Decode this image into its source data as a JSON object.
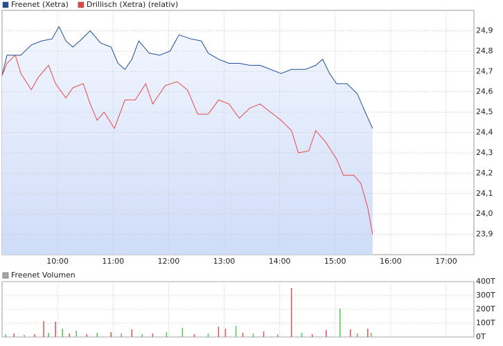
{
  "chart_data": [
    {
      "type": "line",
      "xlim": [
        9,
        17.5
      ],
      "ylim": [
        23.8,
        25.0
      ],
      "grid": true,
      "xticks": [
        {
          "value": 10,
          "label": "10:00"
        },
        {
          "value": 11,
          "label": "11:00"
        },
        {
          "value": 12,
          "label": "12:00"
        },
        {
          "value": 13,
          "label": "13:00"
        },
        {
          "value": 14,
          "label": "14:00"
        },
        {
          "value": 15,
          "label": "15:00"
        },
        {
          "value": 16,
          "label": "16:00"
        },
        {
          "value": 17,
          "label": "17:00"
        }
      ],
      "yticks": [
        {
          "value": 23.9,
          "label": "23,9"
        },
        {
          "value": 24.0,
          "label": "24,0"
        },
        {
          "value": 24.1,
          "label": "24,1"
        },
        {
          "value": 24.2,
          "label": "24,2"
        },
        {
          "value": 24.3,
          "label": "24,3"
        },
        {
          "value": 24.4,
          "label": "24,4"
        },
        {
          "value": 24.5,
          "label": "24,5"
        },
        {
          "value": 24.6,
          "label": "24,6"
        },
        {
          "value": 24.7,
          "label": "24,7"
        },
        {
          "value": 24.8,
          "label": "24,8"
        },
        {
          "value": 24.9,
          "label": "24,9"
        }
      ],
      "series": [
        {
          "name": "Freenet (Xetra)",
          "color": "#1f4e96",
          "area": true,
          "x": [
            9.0,
            9.088,
            9.338,
            9.525,
            9.713,
            9.9,
            10.025,
            10.15,
            10.275,
            10.4,
            10.588,
            10.775,
            10.963,
            11.088,
            11.213,
            11.338,
            11.463,
            11.65,
            11.838,
            12.025,
            12.188,
            12.4,
            12.588,
            12.713,
            12.9,
            13.088,
            13.275,
            13.463,
            13.65,
            13.838,
            14.025,
            14.213,
            14.463,
            14.65,
            14.775,
            14.9,
            15.025,
            15.213,
            15.4,
            15.525,
            15.675
          ],
          "values": [
            24.68,
            24.78,
            24.78,
            24.83,
            24.85,
            24.86,
            24.92,
            24.85,
            24.82,
            24.85,
            24.9,
            24.84,
            24.82,
            24.74,
            24.71,
            24.76,
            24.85,
            24.79,
            24.78,
            24.8,
            24.88,
            24.86,
            24.85,
            24.79,
            24.76,
            24.74,
            24.74,
            24.73,
            24.73,
            24.71,
            24.69,
            24.71,
            24.71,
            24.73,
            24.76,
            24.69,
            24.64,
            24.64,
            24.59,
            24.51,
            24.42
          ]
        },
        {
          "name": "Drillisch (Xetra) (relativ)",
          "color": "#e8474a",
          "area": false,
          "x": [
            9.0,
            9.088,
            9.238,
            9.338,
            9.525,
            9.65,
            9.838,
            9.963,
            10.15,
            10.275,
            10.463,
            10.588,
            10.713,
            10.838,
            11.025,
            11.213,
            11.4,
            11.588,
            11.713,
            11.938,
            12.15,
            12.338,
            12.525,
            12.713,
            12.9,
            13.088,
            13.275,
            13.463,
            13.65,
            13.838,
            14.025,
            14.213,
            14.338,
            14.525,
            14.65,
            14.838,
            15.025,
            15.15,
            15.338,
            15.463,
            15.588,
            15.675
          ],
          "values": [
            24.68,
            24.74,
            24.78,
            24.69,
            24.61,
            24.67,
            24.73,
            24.64,
            24.57,
            24.62,
            24.64,
            24.54,
            24.46,
            24.5,
            24.42,
            24.56,
            24.56,
            24.64,
            24.54,
            24.63,
            24.65,
            24.61,
            24.49,
            24.49,
            24.56,
            24.54,
            24.47,
            24.52,
            24.54,
            24.5,
            24.46,
            24.41,
            24.3,
            24.31,
            24.41,
            24.35,
            24.27,
            24.19,
            24.19,
            24.15,
            24.03,
            23.9
          ]
        }
      ]
    },
    {
      "type": "bar",
      "xlim": [
        9,
        17.5
      ],
      "ylim": [
        0,
        400
      ],
      "grid": true,
      "yticks": [
        {
          "value": 0,
          "label": "0T"
        },
        {
          "value": 100,
          "label": "100T"
        },
        {
          "value": 200,
          "label": "200T"
        },
        {
          "value": 300,
          "label": "300T"
        },
        {
          "value": 400,
          "label": "400T"
        }
      ],
      "series": [
        {
          "name": "Freenet Volumen",
          "color": "#a8a8a8",
          "x": [
            9.063,
            9.213,
            9.4,
            9.588,
            9.75,
            9.838,
            9.963,
            10.088,
            10.213,
            10.338,
            10.525,
            10.713,
            10.963,
            11.15,
            11.338,
            11.525,
            11.713,
            11.963,
            12.25,
            12.463,
            12.713,
            12.9,
            13.025,
            13.213,
            13.338,
            13.525,
            13.713,
            13.963,
            14.213,
            14.4,
            14.588,
            14.838,
            15.088,
            15.275,
            15.4,
            15.588,
            15.65
          ],
          "values": [
            20,
            25,
            15,
            20,
            115,
            30,
            110,
            60,
            25,
            45,
            20,
            30,
            35,
            25,
            55,
            20,
            25,
            35,
            65,
            20,
            25,
            75,
            60,
            80,
            30,
            25,
            40,
            20,
            355,
            30,
            20,
            50,
            205,
            55,
            25,
            60,
            30
          ],
          "colors": [
            "#58c058",
            "#e05050",
            "#58c058",
            "#e05050",
            "#e05050",
            "#58c058",
            "#e05050",
            "#58c058",
            "#e05050",
            "#58c058",
            "#e05050",
            "#58c058",
            "#e05050",
            "#58c058",
            "#e05050",
            "#58c058",
            "#e05050",
            "#58c058",
            "#58c058",
            "#e05050",
            "#58c058",
            "#e05050",
            "#e05050",
            "#58c058",
            "#e05050",
            "#58c058",
            "#e05050",
            "#58c058",
            "#e05050",
            "#58c058",
            "#e05050",
            "#e05050",
            "#58c058",
            "#e05050",
            "#58c058",
            "#e05050",
            "#58c058"
          ]
        }
      ]
    }
  ]
}
